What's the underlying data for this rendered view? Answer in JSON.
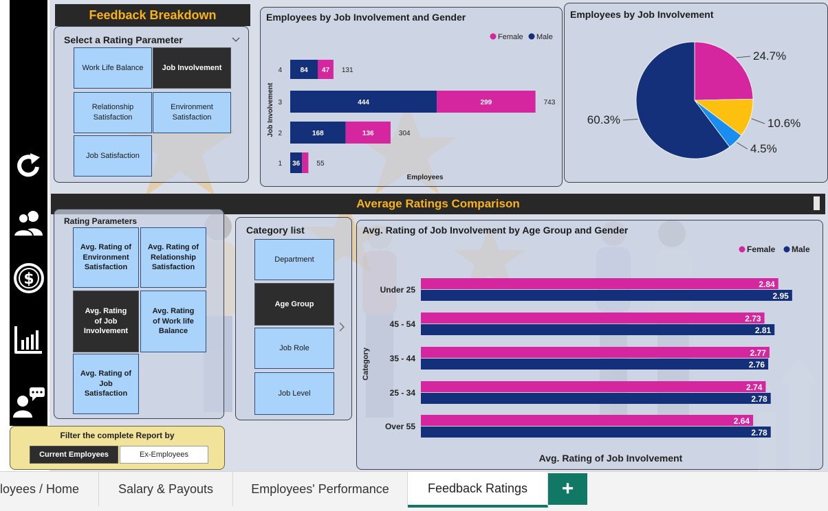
{
  "feedback_breakdown": {
    "title": "Feedback Breakdown",
    "slicer_title": "Select a Rating Parameter",
    "options": [
      "Work Life Balance",
      "Job Involvement",
      "Relationship Satisfaction",
      "Environment Satisfaction",
      "Job Satisfaction"
    ],
    "selected": "Job Involvement"
  },
  "average_ratings": {
    "title": "Average Ratings Comparison",
    "rating_params_title": "Rating Parameters",
    "rating_params": [
      "Avg. Rating of Environment Satisfaction",
      "Avg. Rating of Relationship Satisfaction",
      "Avg. Rating of Job Involvement",
      "Avg. Rating of Work life Balance",
      "Avg. Rating of Job Satisfaction"
    ],
    "selected_param": "Avg. Rating of Job Involvement",
    "category_title": "Category list",
    "categories": [
      "Department",
      "Age Group",
      "Job Role",
      "Job Level"
    ],
    "selected_category": "Age Group"
  },
  "filter": {
    "title": "Filter the complete Report by",
    "options": [
      "Current Employees",
      "Ex-Employees"
    ],
    "selected": "Current Employees"
  },
  "tabs": [
    "loyees / Home",
    "Salary & Payouts",
    "Employees' Performance",
    "Feedback Ratings"
  ],
  "active_tab": "Feedback Ratings",
  "add_tab_label": "+",
  "colors": {
    "female": "#d5259f",
    "male": "#14307a",
    "slice_yellow": "#fec00f",
    "slice_light_blue": "#1a8ef0",
    "header_yellow": "#f8b31b"
  },
  "icons": [
    "refresh-icon",
    "people-icon",
    "dollar-icon",
    "bar-chart-icon",
    "feedback-user-icon"
  ],
  "chart_data": [
    {
      "type": "bar",
      "orientation": "horizontal-stacked",
      "title": "Employees by Job Involvement and Gender",
      "xlabel": "Employees",
      "ylabel": "Job Involvement",
      "categories": [
        "4",
        "3",
        "2",
        "1"
      ],
      "series": [
        {
          "name": "Male",
          "values": [
            84,
            444,
            168,
            36
          ]
        },
        {
          "name": "Female",
          "values": [
            47,
            299,
            136,
            19
          ]
        }
      ],
      "totals": [
        131,
        743,
        304,
        55
      ],
      "legend": [
        "Female",
        "Male"
      ],
      "legend_position": "top-right"
    },
    {
      "type": "pie",
      "title": "Employees by Job Involvement",
      "slices": [
        {
          "value": 24.7,
          "label": "24.7%",
          "color": "#d5259f"
        },
        {
          "value": 10.6,
          "label": "10.6%",
          "color": "#fec00f"
        },
        {
          "value": 4.5,
          "label": "4.5%",
          "color": "#1a8ef0"
        },
        {
          "value": 60.3,
          "label": "60.3%",
          "color": "#14307a"
        }
      ]
    },
    {
      "type": "bar",
      "orientation": "horizontal-grouped",
      "title": "Avg. Rating of Job Involvement by Age Group and Gender",
      "xlabel": "Avg. Rating of Job Involvement",
      "ylabel": "Category",
      "categories": [
        "Under 25",
        "45 - 54",
        "35 - 44",
        "25 - 34",
        "Over 55"
      ],
      "series": [
        {
          "name": "Female",
          "values": [
            2.84,
            2.73,
            2.77,
            2.74,
            2.64
          ]
        },
        {
          "name": "Male",
          "values": [
            2.95,
            2.81,
            2.76,
            2.78,
            2.78
          ]
        }
      ],
      "legend": [
        "Female",
        "Male"
      ],
      "legend_position": "top-right"
    }
  ]
}
